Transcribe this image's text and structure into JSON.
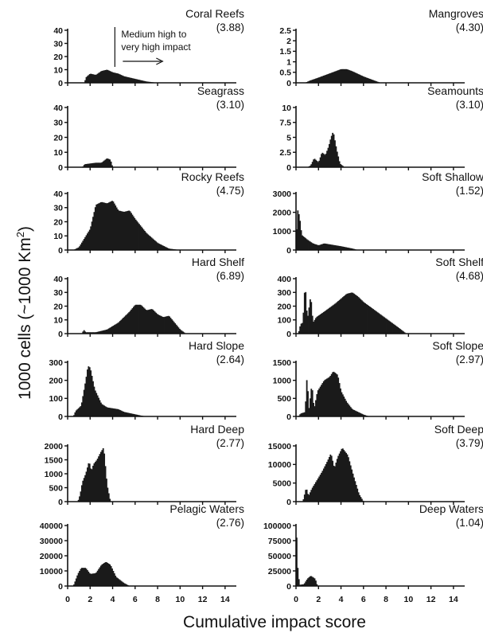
{
  "figure": {
    "ylabel": "1000 cells (~1000 Km²)",
    "xlabel": "Cumulative impact score",
    "annotation": {
      "line1": "Medium high to",
      "line2": "very high impact",
      "x_value": 4.2
    }
  },
  "chart_data": [
    {
      "type": "area",
      "title": "Coral Reefs",
      "subtitle": "(3.88)",
      "ylim": [
        0,
        40
      ],
      "yticks": [
        "40",
        "30",
        "20",
        "10",
        "0"
      ],
      "xlim": [
        0,
        15
      ],
      "points": [
        [
          1.5,
          0
        ],
        [
          1.6,
          4
        ],
        [
          2.0,
          7
        ],
        [
          2.5,
          6
        ],
        [
          3.0,
          9
        ],
        [
          3.5,
          10
        ],
        [
          4.0,
          8
        ],
        [
          4.5,
          7
        ],
        [
          5.0,
          5
        ],
        [
          6.0,
          3
        ],
        [
          7.0,
          1
        ],
        [
          8.0,
          0
        ]
      ]
    },
    {
      "type": "area",
      "title": "Mangroves",
      "subtitle": "(4.30)",
      "ylim": [
        0,
        2.5
      ],
      "yticks": [
        "2.5",
        "2",
        "1.5",
        "1",
        "0.5",
        "0"
      ],
      "xlim": [
        0,
        15
      ],
      "points": [
        [
          0.8,
          0
        ],
        [
          1.2,
          0.1
        ],
        [
          2.0,
          0.25
        ],
        [
          3.0,
          0.45
        ],
        [
          4.0,
          0.65
        ],
        [
          4.5,
          0.65
        ],
        [
          5.0,
          0.55
        ],
        [
          6.0,
          0.3
        ],
        [
          7.0,
          0.1
        ],
        [
          7.5,
          0
        ]
      ]
    },
    {
      "type": "area",
      "title": "Seagrass",
      "subtitle": "(3.10)",
      "ylim": [
        0,
        40
      ],
      "yticks": [
        "40",
        "30",
        "20",
        "10",
        "0"
      ],
      "xlim": [
        0,
        15
      ],
      "points": [
        [
          1.3,
          0
        ],
        [
          1.5,
          2
        ],
        [
          2.5,
          3
        ],
        [
          3.0,
          3
        ],
        [
          3.5,
          6
        ],
        [
          3.8,
          5
        ],
        [
          4.0,
          0
        ]
      ]
    },
    {
      "type": "area",
      "title": "Seamounts",
      "subtitle": "(3.10)",
      "ylim": [
        0,
        10
      ],
      "yticks": [
        "10",
        "7.5",
        "5",
        "2.5",
        "0"
      ],
      "xlim": [
        0,
        15
      ],
      "points": [
        [
          1.0,
          0
        ],
        [
          1.3,
          0.3
        ],
        [
          1.6,
          1.5
        ],
        [
          2.0,
          0.8
        ],
        [
          2.3,
          2.5
        ],
        [
          2.6,
          2
        ],
        [
          2.9,
          3.5
        ],
        [
          3.1,
          5
        ],
        [
          3.3,
          6
        ],
        [
          3.6,
          3
        ],
        [
          3.9,
          0.6
        ],
        [
          4.3,
          0
        ]
      ]
    },
    {
      "type": "area",
      "title": "Rocky Reefs",
      "subtitle": "(4.75)",
      "ylim": [
        0,
        40
      ],
      "yticks": [
        "40",
        "30",
        "20",
        "10",
        "0"
      ],
      "xlim": [
        0,
        15
      ],
      "points": [
        [
          0.5,
          0
        ],
        [
          1.0,
          2
        ],
        [
          2.0,
          15
        ],
        [
          2.5,
          32
        ],
        [
          3.0,
          34
        ],
        [
          3.5,
          33
        ],
        [
          4.0,
          35
        ],
        [
          4.5,
          28
        ],
        [
          5.0,
          27
        ],
        [
          5.5,
          28
        ],
        [
          6.0,
          22
        ],
        [
          7.0,
          12
        ],
        [
          8.0,
          5
        ],
        [
          9.0,
          1
        ],
        [
          10.0,
          0
        ]
      ]
    },
    {
      "type": "area",
      "title": "Soft Shallow",
      "subtitle": "(1.52)",
      "ylim": [
        0,
        3000
      ],
      "yticks": [
        "3000",
        "2000",
        "1000",
        "0"
      ],
      "xlim": [
        0,
        15
      ],
      "points": [
        [
          0.0,
          0
        ],
        [
          0.1,
          2200
        ],
        [
          0.3,
          1800
        ],
        [
          0.5,
          800
        ],
        [
          1.0,
          550
        ],
        [
          1.5,
          350
        ],
        [
          2.0,
          250
        ],
        [
          2.5,
          350
        ],
        [
          3.0,
          300
        ],
        [
          4.0,
          200
        ],
        [
          5.0,
          80
        ],
        [
          5.5,
          0
        ]
      ]
    },
    {
      "type": "area",
      "title": "Hard Shelf",
      "subtitle": "(6.89)",
      "ylim": [
        0,
        40
      ],
      "yticks": [
        "40",
        "30",
        "20",
        "10",
        "0"
      ],
      "xlim": [
        0,
        15
      ],
      "points": [
        [
          1.3,
          0
        ],
        [
          1.4,
          3
        ],
        [
          1.6,
          1
        ],
        [
          2.5,
          1
        ],
        [
          3.5,
          3
        ],
        [
          4.5,
          8
        ],
        [
          5.0,
          12
        ],
        [
          5.5,
          16
        ],
        [
          6.0,
          21
        ],
        [
          6.5,
          21
        ],
        [
          7.0,
          17
        ],
        [
          7.5,
          18
        ],
        [
          8.0,
          14
        ],
        [
          8.5,
          12
        ],
        [
          9.0,
          13
        ],
        [
          9.5,
          8
        ],
        [
          10.0,
          3
        ],
        [
          10.5,
          0
        ]
      ]
    },
    {
      "type": "area",
      "title": "Soft Shelf",
      "subtitle": "(4.68)",
      "ylim": [
        0,
        400
      ],
      "yticks": [
        "400",
        "300",
        "200",
        "100",
        "0"
      ],
      "xlim": [
        0,
        15
      ],
      "points": [
        [
          0.2,
          0
        ],
        [
          0.4,
          70
        ],
        [
          0.6,
          80
        ],
        [
          0.8,
          370
        ],
        [
          1.0,
          100
        ],
        [
          1.3,
          280
        ],
        [
          1.5,
          80
        ],
        [
          1.8,
          120
        ],
        [
          2.5,
          160
        ],
        [
          3.5,
          220
        ],
        [
          4.5,
          290
        ],
        [
          5.0,
          300
        ],
        [
          5.5,
          270
        ],
        [
          6.0,
          230
        ],
        [
          7.0,
          170
        ],
        [
          8.0,
          110
        ],
        [
          9.0,
          50
        ],
        [
          9.8,
          0
        ]
      ]
    },
    {
      "type": "area",
      "title": "Hard Slope",
      "subtitle": "(2.64)",
      "ylim": [
        0,
        300
      ],
      "yticks": [
        "300",
        "200",
        "100",
        "0"
      ],
      "xlim": [
        0,
        15
      ],
      "points": [
        [
          0.5,
          0
        ],
        [
          0.7,
          30
        ],
        [
          1.2,
          60
        ],
        [
          1.6,
          200
        ],
        [
          1.8,
          280
        ],
        [
          2.0,
          270
        ],
        [
          2.4,
          150
        ],
        [
          3.0,
          70
        ],
        [
          3.5,
          50
        ],
        [
          4.0,
          45
        ],
        [
          4.5,
          40
        ],
        [
          5.0,
          25
        ],
        [
          6.5,
          5
        ],
        [
          7.0,
          0
        ]
      ]
    },
    {
      "type": "area",
      "title": "Soft Slope",
      "subtitle": "(2.97)",
      "ylim": [
        0,
        1500
      ],
      "yticks": [
        "1500",
        "1000",
        "500",
        "0"
      ],
      "xlim": [
        0,
        15
      ],
      "points": [
        [
          0.2,
          0
        ],
        [
          0.4,
          80
        ],
        [
          0.8,
          120
        ],
        [
          1.0,
          1300
        ],
        [
          1.1,
          100
        ],
        [
          1.4,
          900
        ],
        [
          1.6,
          200
        ],
        [
          1.9,
          700
        ],
        [
          2.5,
          1000
        ],
        [
          3.0,
          1100
        ],
        [
          3.3,
          1250
        ],
        [
          3.7,
          1150
        ],
        [
          4.0,
          700
        ],
        [
          4.5,
          400
        ],
        [
          5.0,
          200
        ],
        [
          6.0,
          50
        ],
        [
          6.5,
          0
        ]
      ]
    },
    {
      "type": "area",
      "title": "Hard Deep",
      "subtitle": "(2.77)",
      "ylim": [
        0,
        2000
      ],
      "yticks": [
        "2000",
        "1500",
        "1000",
        "500",
        "0"
      ],
      "xlim": [
        0,
        15
      ],
      "points": [
        [
          0.9,
          0
        ],
        [
          1.1,
          250
        ],
        [
          1.3,
          700
        ],
        [
          1.6,
          1000
        ],
        [
          1.9,
          1450
        ],
        [
          2.1,
          1100
        ],
        [
          2.3,
          1350
        ],
        [
          2.6,
          1500
        ],
        [
          2.9,
          1750
        ],
        [
          3.2,
          1950
        ],
        [
          3.5,
          600
        ],
        [
          3.8,
          0
        ]
      ]
    },
    {
      "type": "area",
      "title": "Soft Deep",
      "subtitle": "(3.79)",
      "ylim": [
        0,
        15000
      ],
      "yticks": [
        "15000",
        "10000",
        "5000",
        "0"
      ],
      "xlim": [
        0,
        15
      ],
      "points": [
        [
          0.6,
          0
        ],
        [
          0.9,
          3800
        ],
        [
          1.1,
          1500
        ],
        [
          1.4,
          3500
        ],
        [
          1.8,
          5500
        ],
        [
          2.3,
          8000
        ],
        [
          2.8,
          11000
        ],
        [
          3.1,
          13000
        ],
        [
          3.4,
          9000
        ],
        [
          3.7,
          12000
        ],
        [
          4.1,
          14500
        ],
        [
          4.6,
          12500
        ],
        [
          5.1,
          7000
        ],
        [
          5.6,
          2000
        ],
        [
          6.0,
          0
        ]
      ]
    },
    {
      "type": "area",
      "title": "Pelagic Waters",
      "subtitle": "(2.76)",
      "ylim": [
        0,
        40000
      ],
      "yticks": [
        "40000",
        "30000",
        "20000",
        "10000",
        "0"
      ],
      "xlim": [
        0,
        15
      ],
      "points": [
        [
          0.5,
          0
        ],
        [
          0.9,
          8000
        ],
        [
          1.2,
          12000
        ],
        [
          1.6,
          12000
        ],
        [
          2.0,
          8000
        ],
        [
          2.5,
          8500
        ],
        [
          3.0,
          14000
        ],
        [
          3.4,
          16000
        ],
        [
          3.8,
          14000
        ],
        [
          4.3,
          6000
        ],
        [
          5.0,
          2000
        ],
        [
          5.5,
          0
        ]
      ]
    },
    {
      "type": "area",
      "title": "Deep Waters",
      "subtitle": "(1.04)",
      "ylim": [
        0,
        100000
      ],
      "yticks": [
        "100000",
        "75000",
        "50000",
        "25000",
        "0"
      ],
      "xlim": [
        0,
        15
      ],
      "points": [
        [
          0.0,
          0
        ],
        [
          0.05,
          80000
        ],
        [
          0.15,
          30000
        ],
        [
          0.3,
          2000
        ],
        [
          0.7,
          3000
        ],
        [
          1.0,
          12000
        ],
        [
          1.3,
          17000
        ],
        [
          1.7,
          12000
        ],
        [
          1.9,
          0
        ]
      ]
    }
  ]
}
